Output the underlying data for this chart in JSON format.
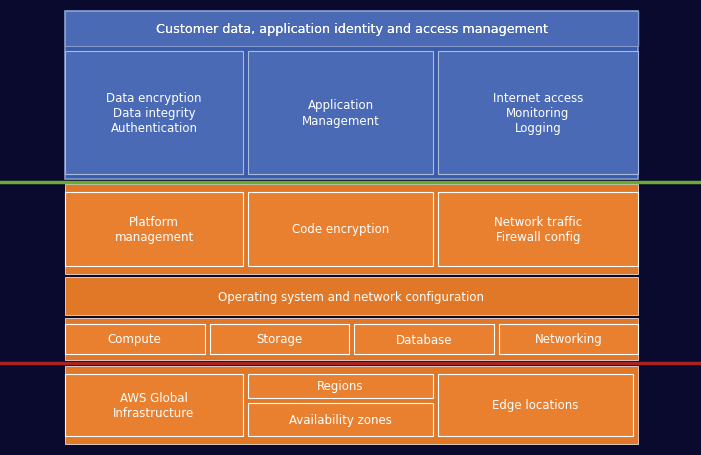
{
  "bg_color": "#0a0a2e",
  "blue_header": "#4a6ab5",
  "blue_sub": "#3a5aaa",
  "blue_inner": "#4a6ab5",
  "orange_bg": "#e07828",
  "orange_inner": "#e07828",
  "orange_lighter": "#e88030",
  "white": "#ffffff",
  "green_line": "#6aaa30",
  "red_line": "#aa2222",
  "title_top": "Customer data, application identity and access management",
  "box1_text": "Data encryption\nData integrity\nAuthentication",
  "box2_text": "Application\nManagement",
  "box3_text": "Internet access\nMonitoring\nLogging",
  "box4_text": "Platform\nmanagement",
  "box5_text": "Code encryption",
  "box6_text": "Network traffic\nFirewall config",
  "box7_text": "Operating system and network configuration",
  "box8_text": "Compute",
  "box9_text": "Storage",
  "box10_text": "Database",
  "box11_text": "Networking",
  "box12_text": "AWS Global\nInfrastructure",
  "box13_text": "Regions",
  "box14_text": "Availability zones",
  "box15_text": "Edge locations",
  "font_size": 8.5,
  "title_font_size": 9.2
}
